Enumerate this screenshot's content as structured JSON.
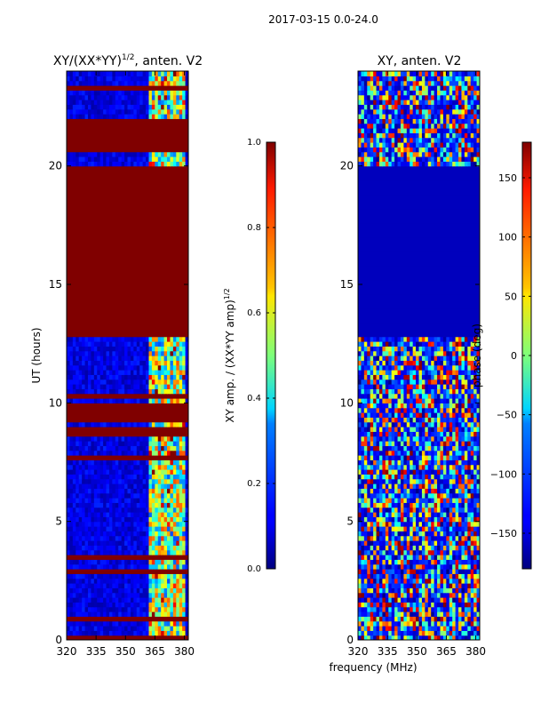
{
  "figure": {
    "suptitle": "2017-03-15 0.0-24.0",
    "xlabel": "frequency (MHz)"
  },
  "chart_data": [
    {
      "type": "heatmap",
      "title": "XY/(XX*YY)",
      "title_exponent": "1/2",
      "title_suffix": ", anten. V2",
      "xlabel": "",
      "ylabel": "UT (hours)",
      "xlim": [
        320,
        382
      ],
      "ylim": [
        0,
        24
      ],
      "xticks": [
        320,
        335,
        350,
        365,
        380
      ],
      "yticks": [
        0,
        5,
        10,
        15,
        20
      ],
      "colorscale": "jet",
      "saturated_intervals_hours": [
        [
          0,
          0.3
        ],
        [
          8.6,
          9.0
        ],
        [
          9.5,
          10.1
        ],
        [
          10.2,
          10.4
        ],
        [
          12.9,
          20.0
        ],
        [
          20.6,
          22.0
        ],
        [
          23.2,
          23.4
        ]
      ],
      "colorbar": {
        "label_main": "XY amp. / (XX*YY amp)",
        "label_exponent": "1/2",
        "range": [
          0.0,
          1.0
        ],
        "ticks": [
          "0.0",
          "0.2",
          "0.4",
          "0.6",
          "0.8",
          "1.0"
        ]
      }
    },
    {
      "type": "heatmap",
      "title": "XY, anten. V2",
      "xlabel": "frequency (MHz)",
      "ylabel": "",
      "xlim": [
        320,
        382
      ],
      "ylim": [
        0,
        24
      ],
      "xticks": [
        320,
        335,
        350,
        365,
        380
      ],
      "yticks": [
        0,
        5,
        10,
        15,
        20
      ],
      "colorscale": "jet",
      "constant_interval_hours": [
        12.9,
        20.0
      ],
      "colorbar": {
        "label": "phase (deg)",
        "range": [
          -180,
          180
        ],
        "ticks": [
          "−150",
          "−100",
          "−50",
          "0",
          "50",
          "100",
          "150"
        ]
      }
    }
  ]
}
